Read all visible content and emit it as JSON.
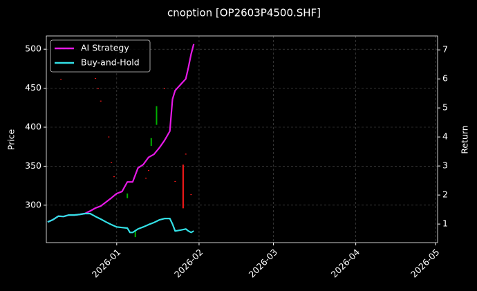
{
  "chart_data": {
    "type": "line",
    "title": "cnoption [OP2603P4500.SHF]",
    "ylabel": "Price",
    "y2label": "Return",
    "x": [
      -26,
      -24,
      -22,
      -20,
      -18,
      -16,
      -14,
      -12,
      -10,
      -8,
      -6,
      -4,
      -2,
      0,
      2,
      4,
      5,
      6,
      8,
      10,
      12,
      14,
      16,
      18,
      20,
      21,
      22,
      24,
      26,
      27,
      28,
      29
    ],
    "xlim": [
      -26.5,
      120.8
    ],
    "xticks": [
      {
        "value": 0,
        "label": "2026-01"
      },
      {
        "value": 31,
        "label": "2026-02"
      },
      {
        "value": 59,
        "label": "2026-03"
      },
      {
        "value": 90,
        "label": "2026-04"
      },
      {
        "value": 120,
        "label": "2026-05"
      }
    ],
    "ylim": [
      252,
      517
    ],
    "yticks": [
      300,
      350,
      400,
      450,
      500
    ],
    "y2lim": [
      0.36,
      7.48
    ],
    "y2ticks": [
      1,
      2,
      3,
      4,
      5,
      6,
      7
    ],
    "grid": true,
    "legend": "upper left",
    "series": [
      {
        "name": "AI Strategy",
        "color": "#e619e6",
        "axis": "y2",
        "values": [
          1.07,
          1.15,
          1.27,
          1.26,
          1.31,
          1.31,
          1.33,
          1.36,
          1.45,
          1.55,
          1.62,
          1.76,
          1.9,
          2.05,
          2.12,
          2.45,
          2.45,
          2.45,
          2.93,
          3.05,
          3.3,
          3.4,
          3.62,
          3.88,
          4.2,
          5.3,
          5.6,
          5.8,
          6.0,
          6.4,
          6.85,
          7.2
        ]
      },
      {
        "name": "Buy-and-Hold",
        "color": "#33e0e6",
        "axis": "y2",
        "values": [
          1.07,
          1.15,
          1.27,
          1.26,
          1.31,
          1.31,
          1.33,
          1.36,
          1.36,
          1.26,
          1.17,
          1.07,
          0.98,
          0.9,
          0.88,
          0.86,
          0.71,
          0.71,
          0.83,
          0.9,
          0.98,
          1.05,
          1.14,
          1.19,
          1.19,
          1.0,
          0.76,
          0.79,
          0.83,
          0.76,
          0.71,
          0.76
        ]
      }
    ],
    "candles": {
      "x": [
        -21,
        -8,
        -7,
        -6,
        -3,
        -2,
        -1,
        4,
        7,
        11,
        12,
        13,
        15,
        18,
        22,
        25,
        26,
        28
      ],
      "open": [
        462,
        463,
        450,
        434,
        388,
        355,
        337,
        309,
        259,
        335,
        345,
        376,
        403,
        450,
        331,
        352,
        366,
        314
      ],
      "close": [
        461,
        462,
        449,
        433,
        387,
        354,
        336,
        315,
        268,
        334,
        344,
        386,
        427,
        449,
        330,
        296,
        365,
        313
      ],
      "up_color": "#00b000",
      "down_color": "#ff1a1a"
    }
  }
}
